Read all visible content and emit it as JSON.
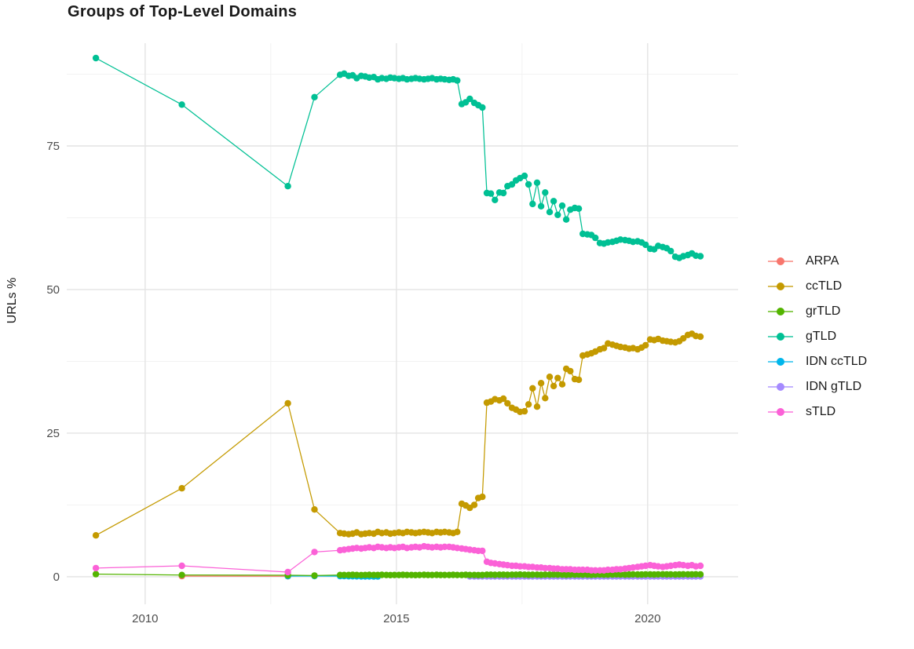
{
  "title": "Groups of Top-Level Domains",
  "chart_data": {
    "type": "line",
    "title": "Groups of Top-Level Domains",
    "xlabel": "",
    "ylabel": "URLs %",
    "grid": true,
    "legend_position": "right",
    "background": "#ffffff",
    "gridline_major_color": "#e4e4e4",
    "gridline_minor_color": "#f0f0f0",
    "tick_label_color": "#4d4d4d",
    "xlim": [
      2008.44,
      2021.8
    ],
    "ylim": [
      -4.8,
      92.9
    ],
    "x_ticks_major": [
      {
        "value": 2010,
        "label": "2010"
      },
      {
        "value": 2015,
        "label": "2015"
      },
      {
        "value": 2020,
        "label": "2020"
      }
    ],
    "x_ticks_minor": [
      2012.5,
      2017.5
    ],
    "y_ticks_major": [
      {
        "value": 0,
        "label": "0"
      },
      {
        "value": 25,
        "label": "25"
      },
      {
        "value": 50,
        "label": "50"
      },
      {
        "value": 75,
        "label": "75"
      }
    ],
    "y_ticks_minor": [
      12.5,
      37.5,
      62.5,
      87.5
    ],
    "x": [
      2009.02,
      2010.73,
      2012.84,
      2013.37,
      2013.88,
      2013.96,
      2014.05,
      2014.13,
      2014.21,
      2014.3,
      2014.38,
      2014.46,
      2014.55,
      2014.63,
      2014.71,
      2014.8,
      2014.88,
      2014.96,
      2015.05,
      2015.13,
      2015.21,
      2015.3,
      2015.38,
      2015.46,
      2015.55,
      2015.63,
      2015.71,
      2015.8,
      2015.88,
      2015.96,
      2016.05,
      2016.13,
      2016.21,
      2016.3,
      2016.38,
      2016.46,
      2016.55,
      2016.63,
      2016.71,
      2016.8,
      2016.88,
      2016.96,
      2017.05,
      2017.13,
      2017.21,
      2017.3,
      2017.38,
      2017.46,
      2017.55,
      2017.63,
      2017.71,
      2017.8,
      2017.88,
      2017.96,
      2018.05,
      2018.13,
      2018.21,
      2018.3,
      2018.38,
      2018.46,
      2018.55,
      2018.63,
      2018.71,
      2018.8,
      2018.88,
      2018.96,
      2019.05,
      2019.13,
      2019.21,
      2019.3,
      2019.38,
      2019.46,
      2019.55,
      2019.63,
      2019.71,
      2019.8,
      2019.88,
      2019.96,
      2020.05,
      2020.13,
      2020.21,
      2020.3,
      2020.38,
      2020.46,
      2020.55,
      2020.63,
      2020.71,
      2020.8,
      2020.88,
      2020.96,
      2021.05
    ],
    "draw_order": [
      0,
      4,
      5,
      2,
      1,
      3,
      6
    ],
    "series": [
      {
        "name": "ARPA",
        "color": "#F8766D",
        "y": [
          null,
          0.1,
          0.08,
          null,
          null,
          null,
          null,
          null,
          null,
          null,
          null,
          null,
          null,
          null,
          null,
          null,
          null,
          null,
          null,
          null,
          null,
          null,
          null,
          null,
          null,
          null,
          null,
          null,
          null,
          null,
          null,
          null,
          null,
          null,
          null,
          null,
          null,
          null,
          null,
          null,
          null,
          null,
          null,
          null,
          null,
          null,
          null,
          null,
          null,
          null,
          null,
          null,
          null,
          null,
          null,
          null,
          null,
          null,
          null,
          null,
          null,
          null,
          null,
          null,
          null,
          null,
          null,
          null,
          null,
          null,
          null,
          null,
          null,
          null,
          null,
          null,
          null,
          null,
          null,
          null,
          null,
          null,
          null,
          null,
          null,
          null,
          null,
          null,
          null,
          null,
          null
        ]
      },
      {
        "name": "ccTLD",
        "color": "#C49A00",
        "y": [
          7.2,
          15.4,
          30.2,
          11.7,
          7.6,
          7.5,
          7.4,
          7.5,
          7.7,
          7.4,
          7.5,
          7.6,
          7.5,
          7.8,
          7.6,
          7.7,
          7.5,
          7.6,
          7.7,
          7.6,
          7.8,
          7.7,
          7.6,
          7.7,
          7.8,
          7.7,
          7.6,
          7.8,
          7.7,
          7.8,
          7.7,
          7.6,
          7.8,
          12.7,
          12.4,
          12.0,
          12.5,
          13.7,
          13.9,
          30.3,
          30.5,
          30.9,
          30.7,
          31.0,
          30.2,
          29.4,
          29.1,
          28.7,
          28.8,
          30.0,
          32.8,
          29.6,
          33.7,
          31.1,
          34.8,
          33.2,
          34.6,
          33.5,
          36.2,
          35.8,
          34.4,
          34.3,
          38.5,
          38.7,
          38.9,
          39.2,
          39.6,
          39.8,
          40.6,
          40.4,
          40.2,
          40.0,
          39.9,
          39.7,
          39.8,
          39.6,
          39.9,
          40.3,
          41.3,
          41.2,
          41.4,
          41.1,
          41.0,
          40.9,
          40.8,
          41.0,
          41.5,
          42.1,
          42.3,
          41.9,
          41.8
        ]
      },
      {
        "name": "grTLD",
        "color": "#53B400",
        "y": [
          0.45,
          0.3,
          0.25,
          0.2,
          0.3,
          0.3,
          0.3,
          0.32,
          0.3,
          0.28,
          0.3,
          0.32,
          0.3,
          0.3,
          0.32,
          0.3,
          0.28,
          0.3,
          0.3,
          0.32,
          0.3,
          0.3,
          0.28,
          0.3,
          0.32,
          0.3,
          0.3,
          0.32,
          0.3,
          0.3,
          0.3,
          0.32,
          0.3,
          0.3,
          0.32,
          0.3,
          0.3,
          0.28,
          0.3,
          0.35,
          0.35,
          0.32,
          0.35,
          0.35,
          0.32,
          0.35,
          0.35,
          0.38,
          0.35,
          0.32,
          0.35,
          0.35,
          0.32,
          0.35,
          0.35,
          0.38,
          0.35,
          0.35,
          0.32,
          0.35,
          0.35,
          0.38,
          0.35,
          0.35,
          0.32,
          0.35,
          0.38,
          0.35,
          0.35,
          0.38,
          0.4,
          0.38,
          0.35,
          0.38,
          0.4,
          0.38,
          0.38,
          0.4,
          0.4,
          0.38,
          0.4,
          0.42,
          0.4,
          0.4,
          0.38,
          0.4,
          0.42,
          0.4,
          0.4,
          0.42,
          0.4
        ]
      },
      {
        "name": "gTLD",
        "color": "#00C094",
        "y": [
          90.3,
          82.2,
          68.0,
          83.5,
          87.4,
          87.6,
          87.2,
          87.3,
          86.8,
          87.2,
          87.1,
          86.9,
          87.0,
          86.6,
          86.8,
          86.7,
          86.9,
          86.8,
          86.7,
          86.8,
          86.6,
          86.7,
          86.8,
          86.7,
          86.6,
          86.7,
          86.8,
          86.6,
          86.7,
          86.6,
          86.5,
          86.6,
          86.4,
          82.3,
          82.6,
          83.2,
          82.5,
          82.1,
          81.7,
          66.8,
          66.7,
          65.6,
          66.9,
          66.8,
          68.0,
          68.3,
          69.0,
          69.4,
          69.8,
          68.3,
          64.9,
          68.6,
          64.5,
          66.9,
          63.5,
          65.4,
          63.0,
          64.6,
          62.2,
          63.9,
          64.2,
          64.1,
          59.7,
          59.6,
          59.5,
          59.0,
          58.1,
          58.0,
          58.2,
          58.3,
          58.5,
          58.7,
          58.6,
          58.5,
          58.3,
          58.4,
          58.2,
          57.8,
          57.1,
          57.0,
          57.6,
          57.4,
          57.2,
          56.7,
          55.7,
          55.5,
          55.8,
          56.0,
          56.3,
          55.9,
          55.8
        ]
      },
      {
        "name": "IDN ccTLD",
        "color": "#00B6EB",
        "y": [
          null,
          null,
          0.1,
          0.12,
          0.1,
          0.1,
          0.08,
          0.08,
          0.06,
          0.05,
          0.05,
          0.05,
          0.04,
          0.04,
          null,
          null,
          null,
          null,
          null,
          null,
          null,
          null,
          null,
          null,
          null,
          null,
          null,
          null,
          null,
          null,
          null,
          null,
          null,
          null,
          null,
          null,
          null,
          null,
          null,
          null,
          null,
          null,
          null,
          null,
          null,
          null,
          null,
          null,
          null,
          null,
          null,
          null,
          null,
          null,
          null,
          null,
          null,
          null,
          null,
          null,
          null,
          null,
          null,
          null,
          null,
          null,
          null,
          null,
          null,
          null,
          null,
          null,
          null,
          null,
          null,
          null,
          null,
          null,
          null,
          null,
          null,
          null,
          null,
          null,
          null,
          null,
          null,
          null,
          null,
          null,
          null
        ]
      },
      {
        "name": "IDN gTLD",
        "color": "#A58AFF",
        "y": [
          null,
          null,
          null,
          null,
          null,
          null,
          null,
          null,
          null,
          null,
          null,
          null,
          null,
          null,
          null,
          null,
          null,
          null,
          null,
          null,
          null,
          null,
          null,
          null,
          null,
          null,
          null,
          null,
          null,
          null,
          null,
          null,
          null,
          null,
          null,
          0.05,
          0.05,
          0.05,
          0.05,
          0.05,
          0.05,
          0.05,
          0.05,
          0.05,
          0.05,
          0.05,
          0.05,
          0.05,
          0.05,
          0.05,
          0.05,
          0.05,
          0.05,
          0.05,
          0.05,
          0.05,
          0.05,
          0.05,
          0.05,
          0.05,
          0.05,
          0.05,
          0.05,
          0.05,
          0.05,
          0.05,
          0.05,
          0.05,
          0.05,
          0.05,
          0.05,
          0.05,
          0.05,
          0.05,
          0.05,
          0.05,
          0.05,
          0.05,
          0.05,
          0.05,
          0.05,
          0.05,
          0.05,
          0.05,
          0.05,
          0.05,
          0.05,
          0.05,
          0.05,
          0.05,
          0.05
        ]
      },
      {
        "name": "sTLD",
        "color": "#FB61D7",
        "y": [
          1.5,
          1.9,
          0.8,
          4.3,
          4.6,
          4.7,
          4.8,
          4.9,
          5.0,
          4.9,
          5.0,
          5.1,
          5.0,
          5.2,
          5.1,
          5.0,
          5.1,
          5.0,
          5.1,
          5.2,
          5.0,
          5.1,
          5.2,
          5.1,
          5.3,
          5.2,
          5.1,
          5.2,
          5.1,
          5.2,
          5.2,
          5.1,
          5.0,
          4.9,
          4.8,
          4.7,
          4.6,
          4.5,
          4.5,
          2.6,
          2.4,
          2.3,
          2.2,
          2.1,
          2.0,
          1.9,
          1.9,
          1.8,
          1.8,
          1.7,
          1.7,
          1.6,
          1.6,
          1.5,
          1.5,
          1.4,
          1.4,
          1.3,
          1.3,
          1.3,
          1.2,
          1.2,
          1.2,
          1.2,
          1.1,
          1.1,
          1.1,
          1.1,
          1.2,
          1.2,
          1.3,
          1.3,
          1.4,
          1.5,
          1.6,
          1.7,
          1.8,
          1.9,
          2.0,
          1.9,
          1.8,
          1.7,
          1.8,
          1.9,
          2.0,
          2.1,
          2.0,
          1.9,
          2.0,
          1.8,
          1.9
        ]
      }
    ]
  }
}
